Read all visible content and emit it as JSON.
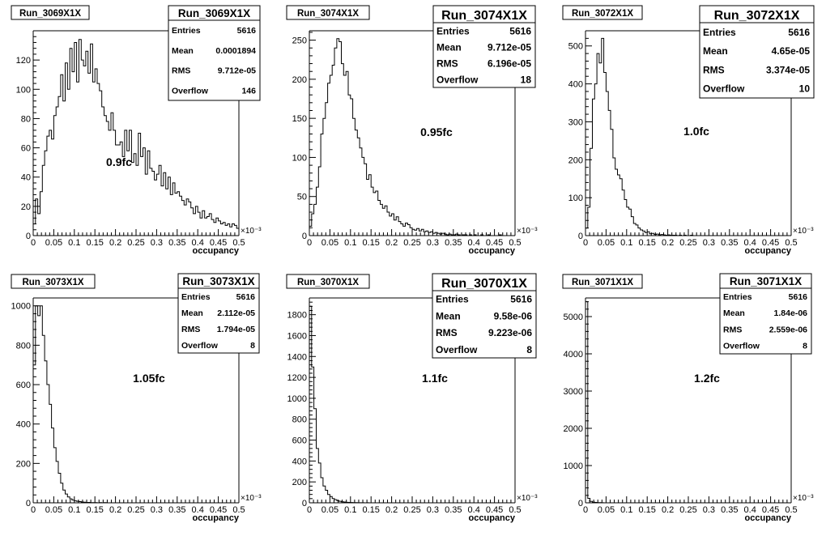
{
  "chart_data": [
    {
      "type": "histogram",
      "title": "Run_3069X1X",
      "annotation": "0.9fc",
      "xlabel": "occupancy",
      "x_exponent": "×10⁻³",
      "xlim": [
        0,
        0.5
      ],
      "ylim": [
        0,
        140
      ],
      "xticks": [
        "0",
        "0.05",
        "0.1",
        "0.15",
        "0.2",
        "0.25",
        "0.3",
        "0.35",
        "0.4",
        "0.45",
        "0.5"
      ],
      "yticks": [
        "0",
        "20",
        "40",
        "60",
        "80",
        "100",
        "120"
      ],
      "stats": {
        "title": "Run_3069X1X",
        "rows": [
          [
            "Entries",
            "5616"
          ],
          [
            "Mean",
            "0.0001894"
          ],
          [
            "RMS",
            "9.712e-05"
          ],
          [
            "Overflow",
            "146"
          ]
        ]
      },
      "bin_edges": [
        0,
        0.5
      ],
      "values": [
        8,
        25,
        15,
        30,
        48,
        58,
        68,
        72,
        66,
        82,
        88,
        95,
        110,
        92,
        118,
        100,
        128,
        112,
        132,
        105,
        134,
        120,
        116,
        126,
        111,
        131,
        105,
        114,
        104,
        99,
        88,
        82,
        78,
        72,
        84,
        72,
        62,
        62,
        64,
        54,
        72,
        58,
        72,
        50,
        56,
        48,
        70,
        54,
        60,
        42,
        58,
        46,
        44,
        38,
        42,
        48,
        34,
        43,
        32,
        40,
        28,
        36,
        29,
        30,
        27,
        24,
        21,
        25,
        23,
        19,
        15,
        20,
        16,
        12,
        17,
        12,
        13,
        15,
        11,
        9,
        12,
        10,
        8,
        9,
        7,
        8,
        6,
        8,
        7,
        5
      ]
    },
    {
      "type": "histogram",
      "title": "Run_3074X1X",
      "annotation": "0.95fc",
      "xlabel": "occupancy",
      "x_exponent": "×10⁻³",
      "xlim": [
        0,
        0.5
      ],
      "ylim": [
        0,
        262
      ],
      "xticks": [
        "0",
        "0.05",
        "0.1",
        "0.15",
        "0.2",
        "0.25",
        "0.3",
        "0.35",
        "0.4",
        "0.45",
        "0.5"
      ],
      "yticks": [
        "0",
        "50",
        "100",
        "150",
        "200",
        "250"
      ],
      "stats": {
        "title": "Run_3074X1X",
        "rows": [
          [
            "Entries",
            "5616"
          ],
          [
            "Mean",
            "9.712e-05"
          ],
          [
            "RMS",
            "6.196e-05"
          ],
          [
            "Overflow",
            "18"
          ]
        ]
      },
      "values": [
        12,
        28,
        40,
        62,
        88,
        130,
        150,
        170,
        195,
        205,
        218,
        240,
        252,
        248,
        220,
        205,
        210,
        180,
        175,
        150,
        135,
        125,
        112,
        100,
        92,
        72,
        78,
        62,
        55,
        57,
        45,
        40,
        35,
        38,
        30,
        25,
        28,
        20,
        24,
        18,
        15,
        12,
        16,
        14,
        10,
        8,
        7,
        9,
        6,
        8,
        5,
        6,
        4,
        5,
        3,
        4,
        3,
        2,
        3,
        2,
        1,
        2,
        1,
        1,
        2,
        1,
        0,
        1,
        1,
        0,
        1,
        0,
        1,
        0,
        0,
        1,
        0,
        0,
        1,
        0,
        0,
        0,
        0,
        1,
        0,
        0,
        0,
        0,
        0,
        0
      ]
    },
    {
      "type": "histogram",
      "title": "Run_3072X1X",
      "annotation": "1.0fc",
      "xlabel": "occupancy",
      "x_exponent": "×10⁻³",
      "xlim": [
        0,
        0.5
      ],
      "ylim": [
        0,
        540
      ],
      "xticks": [
        "0",
        "0.05",
        "0.1",
        "0.15",
        "0.2",
        "0.25",
        "0.3",
        "0.35",
        "0.4",
        "0.45",
        "0.5"
      ],
      "yticks": [
        "0",
        "100",
        "200",
        "300",
        "400",
        "500"
      ],
      "stats": {
        "title": "Run_3072X1X",
        "rows": [
          [
            "Entries",
            "5616"
          ],
          [
            "Mean",
            "4.65e-05"
          ],
          [
            "RMS",
            "3.374e-05"
          ],
          [
            "Overflow",
            "10"
          ]
        ]
      },
      "values": [
        20,
        75,
        230,
        360,
        400,
        480,
        455,
        520,
        430,
        380,
        330,
        280,
        205,
        175,
        160,
        150,
        120,
        95,
        75,
        70,
        50,
        32,
        28,
        20,
        15,
        12,
        8,
        10,
        5,
        6,
        3,
        4,
        2,
        3,
        2,
        1,
        2,
        1,
        1,
        1,
        0,
        1,
        0,
        1,
        0,
        0,
        1,
        0,
        0,
        0,
        0,
        0,
        0,
        0,
        0,
        0,
        0,
        0,
        0,
        0,
        0,
        0,
        0,
        0,
        0,
        0,
        0,
        0,
        0,
        0,
        0,
        0,
        0,
        0,
        0,
        0,
        0,
        0,
        0,
        0,
        0,
        0,
        0,
        0,
        0,
        0,
        0,
        0,
        0,
        0
      ]
    },
    {
      "type": "histogram",
      "title": "Run_3073X1X",
      "annotation": "1.05fc",
      "xlabel": "occupancy",
      "x_exponent": "×10⁻³",
      "xlim": [
        0,
        0.5
      ],
      "ylim": [
        0,
        1040
      ],
      "xticks": [
        "0",
        "0.05",
        "0.1",
        "0.15",
        "0.2",
        "0.25",
        "0.3",
        "0.35",
        "0.4",
        "0.45",
        "0.5"
      ],
      "yticks": [
        "0",
        "200",
        "400",
        "600",
        "800",
        "1000"
      ],
      "stats": {
        "title": "Run_3073X1X",
        "rows": [
          [
            "Entries",
            "5616"
          ],
          [
            "Mean",
            "2.112e-05"
          ],
          [
            "RMS",
            "1.794e-05"
          ],
          [
            "Overflow",
            "8"
          ]
        ]
      },
      "values": [
        700,
        1000,
        950,
        1000,
        850,
        720,
        600,
        500,
        380,
        280,
        210,
        150,
        100,
        65,
        45,
        30,
        20,
        14,
        10,
        8,
        6,
        4,
        3,
        2,
        2,
        1,
        1,
        1,
        0,
        1,
        0,
        1,
        0,
        0,
        0,
        0,
        0,
        0,
        0,
        0,
        0,
        0,
        0,
        0,
        0,
        0,
        0,
        0,
        0,
        0,
        0,
        0,
        0,
        0,
        0,
        0,
        0,
        0,
        0,
        0,
        0,
        0,
        0,
        0,
        0,
        0,
        0,
        0,
        0,
        0,
        0,
        0,
        0,
        0,
        0,
        0,
        0,
        0,
        0,
        0,
        0,
        0,
        0,
        0,
        0,
        0,
        0,
        0,
        0,
        0
      ]
    },
    {
      "type": "histogram",
      "title": "Run_3070X1X",
      "annotation": "1.1fc",
      "xlabel": "occupancy",
      "x_exponent": "×10⁻³",
      "xlim": [
        0,
        0.5
      ],
      "ylim": [
        0,
        1960
      ],
      "xticks": [
        "0",
        "0.05",
        "0.1",
        "0.15",
        "0.2",
        "0.25",
        "0.3",
        "0.35",
        "0.4",
        "0.45",
        "0.5"
      ],
      "yticks": [
        "0",
        "200",
        "400",
        "600",
        "800",
        "1000",
        "1200",
        "1400",
        "1600",
        "1800"
      ],
      "stats": {
        "title": "Run_3070X1X",
        "rows": [
          [
            "Entries",
            "5616"
          ],
          [
            "Mean",
            "9.58e-06"
          ],
          [
            "RMS",
            "9.223e-06"
          ],
          [
            "Overflow",
            "8"
          ]
        ]
      },
      "values": [
        1880,
        1300,
        900,
        520,
        380,
        240,
        160,
        120,
        80,
        60,
        40,
        30,
        20,
        15,
        10,
        8,
        5,
        4,
        3,
        2,
        2,
        1,
        1,
        1,
        0,
        1,
        0,
        0,
        0,
        0,
        0,
        0,
        0,
        0,
        0,
        0,
        0,
        0,
        0,
        0,
        0,
        0,
        0,
        0,
        0,
        0,
        0,
        0,
        0,
        0,
        0,
        0,
        0,
        0,
        0,
        0,
        0,
        0,
        0,
        0,
        0,
        0,
        0,
        0,
        0,
        0,
        0,
        0,
        0,
        0,
        0,
        0,
        0,
        0,
        0,
        0,
        0,
        0,
        0,
        0,
        0,
        0,
        0,
        0,
        0,
        0,
        0,
        0,
        0,
        0
      ]
    },
    {
      "type": "histogram",
      "title": "Run_3071X1X",
      "annotation": "1.2fc",
      "xlabel": "occupancy",
      "x_exponent": "×10⁻³",
      "xlim": [
        0,
        0.5
      ],
      "ylim": [
        0,
        5500
      ],
      "xticks": [
        "0",
        "0.05",
        "0.1",
        "0.15",
        "0.2",
        "0.25",
        "0.3",
        "0.35",
        "0.4",
        "0.45",
        "0.5"
      ],
      "yticks": [
        "0",
        "1000",
        "2000",
        "3000",
        "4000",
        "5000"
      ],
      "stats": {
        "title": "Run_3071X1X",
        "rows": [
          [
            "Entries",
            "5616"
          ],
          [
            "Mean",
            "1.84e-06"
          ],
          [
            "RMS",
            "2.559e-06"
          ],
          [
            "Overflow",
            "8"
          ]
        ]
      },
      "values": [
        5400,
        120,
        40,
        20,
        10,
        6,
        4,
        2,
        1,
        1,
        1,
        0,
        0,
        0,
        0,
        0,
        0,
        0,
        0,
        0,
        0,
        0,
        0,
        0,
        0,
        0,
        0,
        0,
        0,
        0,
        0,
        0,
        0,
        0,
        0,
        0,
        0,
        0,
        0,
        0,
        0,
        0,
        0,
        0,
        0,
        0,
        0,
        0,
        0,
        0,
        0,
        0,
        0,
        0,
        0,
        0,
        0,
        0,
        0,
        0,
        0,
        0,
        0,
        0,
        0,
        0,
        0,
        0,
        0,
        0,
        0,
        0,
        0,
        0,
        0,
        0,
        0,
        0,
        0,
        0,
        0,
        0,
        0,
        0,
        0,
        0,
        0,
        0,
        0,
        0
      ]
    }
  ]
}
